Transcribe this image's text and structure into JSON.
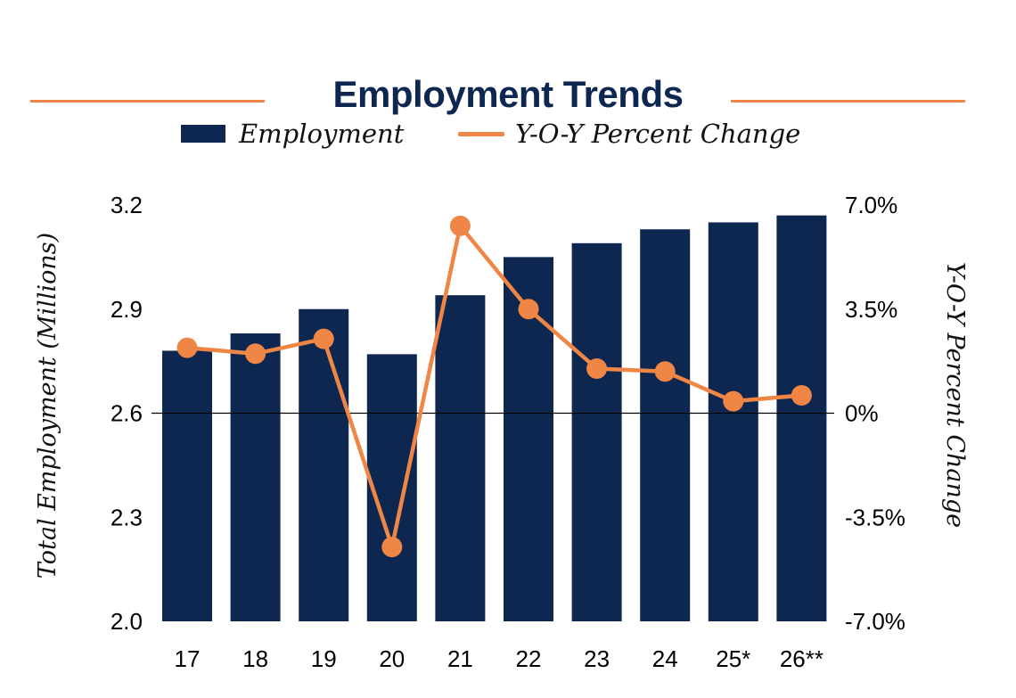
{
  "chart_data": {
    "type": "bar",
    "title": "Employment Trends",
    "categories": [
      "17",
      "18",
      "19",
      "20",
      "21",
      "22",
      "23",
      "24",
      "25*",
      "26**"
    ],
    "series": [
      {
        "name": "Employment",
        "type": "bar",
        "axis": "left",
        "color": "#0e2750",
        "values": [
          2.78,
          2.83,
          2.9,
          2.77,
          2.94,
          3.05,
          3.09,
          3.13,
          3.15,
          3.17
        ]
      },
      {
        "name": "Y-O-Y Percent Change",
        "type": "line",
        "axis": "right",
        "color": "#ef8646",
        "values": [
          2.2,
          2.0,
          2.5,
          -4.5,
          6.3,
          3.5,
          1.5,
          1.4,
          0.4,
          0.6
        ]
      }
    ],
    "ylabel": "Total Employment (Millions)",
    "ylabel_right": "Y-O-Y Percent Change",
    "xlabel": "",
    "ylim": [
      2.0,
      3.2
    ],
    "yticks": [
      "2.0",
      "2.3",
      "2.6",
      "2.9",
      "3.2"
    ],
    "yticks_values": [
      2.0,
      2.3,
      2.6,
      2.9,
      3.2
    ],
    "ylim_right": [
      -7.0,
      7.0
    ],
    "yticks_right": [
      "-7.0%",
      "-3.5%",
      "0%",
      "3.5%",
      "7.0%"
    ],
    "yticks_right_values": [
      -7.0,
      -3.5,
      0,
      3.5,
      7.0
    ],
    "reference_line": {
      "axis": "right",
      "value": 0
    },
    "grid": false,
    "legend_position": "top-center"
  },
  "legend": {
    "bar_label": "Employment",
    "line_label": "Y-O-Y Percent Change"
  }
}
